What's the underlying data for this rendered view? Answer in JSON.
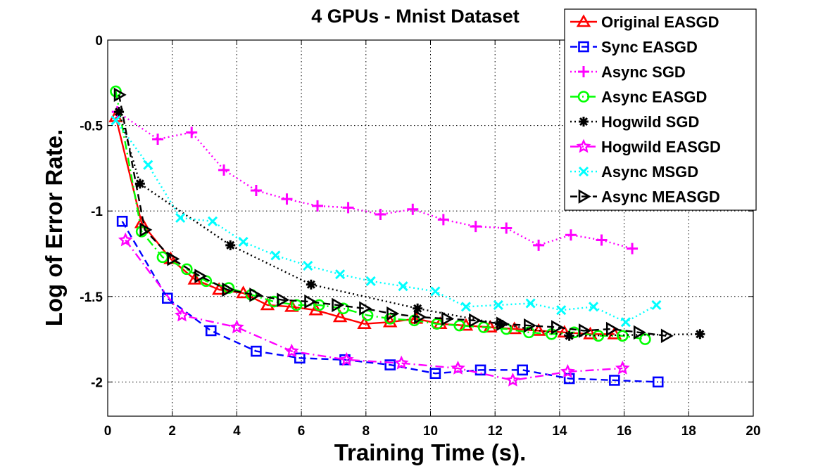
{
  "chart_data": {
    "type": "line",
    "title": "4 GPUs - Mnist Dataset",
    "xlabel": "Training Time (s).",
    "ylabel": "Log of Error Rate.",
    "xlim": [
      0,
      20
    ],
    "ylim": [
      -2.2,
      0
    ],
    "xticks": [
      0,
      2,
      4,
      6,
      8,
      10,
      12,
      14,
      16,
      18,
      20
    ],
    "xtick_labels": [
      "0",
      "2",
      "4",
      "6",
      "8",
      "10",
      "12",
      "14",
      "16",
      "18",
      "20"
    ],
    "yticks": [
      0,
      -0.5,
      -1,
      -1.5,
      -2
    ],
    "ytick_labels": [
      "0",
      "-0.5",
      "-1",
      "-1.5",
      "-2"
    ],
    "grid": true,
    "legend_position": "top-right",
    "series": [
      {
        "name": "Original EASGD",
        "color": "#ff0000",
        "dash": "solid",
        "marker": "triangle",
        "x": [
          0.25,
          1.05,
          1.95,
          2.7,
          3.45,
          4.2,
          4.95,
          5.7,
          6.45,
          7.2,
          7.95,
          8.75,
          9.55,
          10.3,
          11.1,
          11.85,
          12.6,
          13.35,
          14.15,
          14.95,
          15.7
        ],
        "y": [
          -0.45,
          -1.07,
          -1.28,
          -1.4,
          -1.46,
          -1.48,
          -1.55,
          -1.56,
          -1.58,
          -1.62,
          -1.66,
          -1.65,
          -1.63,
          -1.66,
          -1.67,
          -1.68,
          -1.69,
          -1.7,
          -1.71,
          -1.72,
          -1.72
        ]
      },
      {
        "name": "Sync EASGD",
        "color": "#0000ff",
        "dash": "dashed",
        "marker": "square",
        "x": [
          0.45,
          1.85,
          3.2,
          4.6,
          5.95,
          7.35,
          8.75,
          10.15,
          11.55,
          12.85,
          14.3,
          15.7,
          17.05
        ],
        "y": [
          -1.06,
          -1.51,
          -1.7,
          -1.82,
          -1.86,
          -1.87,
          -1.9,
          -1.95,
          -1.93,
          -1.93,
          -1.98,
          -1.99,
          -2.0
        ]
      },
      {
        "name": "Async SGD",
        "color": "#ff00ff",
        "dash": "dotted",
        "marker": "plus",
        "x": [
          0.3,
          1.55,
          2.6,
          3.6,
          4.6,
          5.55,
          6.5,
          7.45,
          8.45,
          9.45,
          10.4,
          11.4,
          12.35,
          13.35,
          14.35,
          15.3,
          16.25
        ],
        "y": [
          -0.42,
          -0.58,
          -0.54,
          -0.76,
          -0.88,
          -0.93,
          -0.97,
          -0.98,
          -1.02,
          -0.99,
          -1.05,
          -1.09,
          -1.1,
          -1.2,
          -1.14,
          -1.17,
          -1.22
        ]
      },
      {
        "name": "Async EASGD",
        "color": "#00ff00",
        "dash": "dashdot",
        "marker": "circle",
        "x": [
          0.25,
          1.05,
          1.7,
          2.45,
          3.05,
          3.75,
          4.45,
          5.15,
          5.85,
          6.55,
          7.3,
          8.05,
          8.75,
          9.5,
          10.2,
          10.9,
          11.65,
          12.35,
          13.05,
          13.75,
          14.45,
          15.2,
          15.95,
          16.65
        ],
        "y": [
          -0.3,
          -1.12,
          -1.27,
          -1.34,
          -1.41,
          -1.45,
          -1.49,
          -1.53,
          -1.55,
          -1.55,
          -1.57,
          -1.61,
          -1.63,
          -1.64,
          -1.66,
          -1.67,
          -1.68,
          -1.69,
          -1.71,
          -1.72,
          -1.71,
          -1.73,
          -1.73,
          -1.75
        ]
      },
      {
        "name": "Hogwild SGD",
        "color": "#000000",
        "dash": "dotted",
        "marker": "asterisk",
        "x": [
          0.35,
          1.0,
          3.8,
          6.3,
          9.6,
          12.15,
          14.3,
          18.35
        ],
        "y": [
          -0.42,
          -0.84,
          -1.2,
          -1.43,
          -1.57,
          -1.66,
          -1.73,
          -1.72
        ]
      },
      {
        "name": "Hogwild EASGD",
        "color": "#ff00ff",
        "dash": "dashdot",
        "marker": "star",
        "x": [
          0.55,
          2.3,
          4.0,
          5.7,
          7.4,
          9.1,
          10.85,
          12.55,
          14.25,
          15.95
        ],
        "y": [
          -1.17,
          -1.61,
          -1.68,
          -1.82,
          -1.87,
          -1.89,
          -1.92,
          -1.99,
          -1.94,
          -1.92
        ]
      },
      {
        "name": "Async MSGD",
        "color": "#00ffff",
        "dash": "dotted",
        "marker": "x",
        "x": [
          0.25,
          1.25,
          2.25,
          3.25,
          4.2,
          5.2,
          6.2,
          7.2,
          8.15,
          9.15,
          10.15,
          11.1,
          12.1,
          13.1,
          14.05,
          15.05,
          16.05,
          17.0
        ],
        "y": [
          -0.47,
          -0.73,
          -1.04,
          -1.06,
          -1.18,
          -1.26,
          -1.32,
          -1.37,
          -1.41,
          -1.44,
          -1.47,
          -1.56,
          -1.55,
          -1.54,
          -1.58,
          -1.56,
          -1.65,
          -1.55
        ]
      },
      {
        "name": "Async MEASGD",
        "color": "#000000",
        "dash": "dashed",
        "marker": "triangle-right",
        "x": [
          0.35,
          1.15,
          2.0,
          2.85,
          3.7,
          4.55,
          5.4,
          6.25,
          7.1,
          7.95,
          8.8,
          9.65,
          10.5,
          11.35,
          12.2,
          13.05,
          13.9,
          14.75,
          15.6,
          16.45,
          17.3
        ],
        "y": [
          -0.32,
          -1.11,
          -1.28,
          -1.38,
          -1.46,
          -1.49,
          -1.52,
          -1.53,
          -1.55,
          -1.57,
          -1.6,
          -1.62,
          -1.63,
          -1.64,
          -1.66,
          -1.67,
          -1.68,
          -1.7,
          -1.69,
          -1.71,
          -1.73
        ]
      }
    ]
  }
}
